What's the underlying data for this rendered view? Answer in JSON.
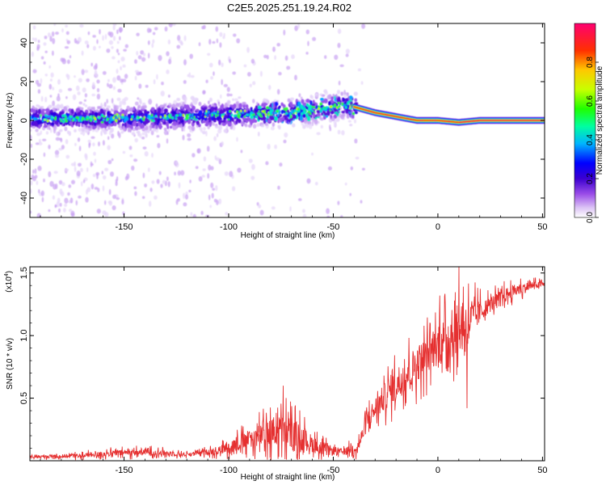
{
  "title": "C2E5.2025.251.19.24.R02",
  "chart_data": [
    {
      "type": "heatmap",
      "xlabel": "Height of straight line (km)",
      "ylabel": "Frequency (Hz)",
      "xlim": [
        -195,
        51
      ],
      "ylim": [
        -50,
        50
      ],
      "xticks": [
        -150,
        -100,
        -50,
        0,
        50
      ],
      "yticks": [
        -40,
        -20,
        0,
        20,
        40
      ],
      "colorbar": {
        "label": "Normalized spectral amplitude",
        "range": [
          0,
          1
        ],
        "ticks": [
          "0.0",
          "0.2",
          "0.4",
          "0.6",
          "0.8"
        ],
        "colors": [
          "#ffffff",
          "#c89bf0",
          "#8a2be2",
          "#3a00c8",
          "#0000ff",
          "#00c8ff",
          "#00ff80",
          "#40ff00",
          "#ffff00",
          "#ff9900",
          "#ff0000",
          "#ff0066"
        ]
      },
      "ridge_center": [
        {
          "x": -195,
          "y": 1
        },
        {
          "x": -150,
          "y": 1
        },
        {
          "x": -100,
          "y": 3
        },
        {
          "x": -70,
          "y": 4
        },
        {
          "x": -45,
          "y": 8
        },
        {
          "x": -40,
          "y": 7
        },
        {
          "x": -30,
          "y": 4
        },
        {
          "x": -20,
          "y": 2
        },
        {
          "x": -10,
          "y": 0
        },
        {
          "x": 0,
          "y": 0
        },
        {
          "x": 10,
          "y": -1
        },
        {
          "x": 20,
          "y": 0
        },
        {
          "x": 50,
          "y": 0
        }
      ]
    },
    {
      "type": "line",
      "xlabel": "Height of straight line (km)",
      "ylabel": "SNR (10 * v/v)",
      "yscale_label": "(x10",
      "yscale_exp": "4",
      "yscale_close": ")",
      "xlim": [
        -195,
        51
      ],
      "ylim": [
        0,
        1.55
      ],
      "xticks": [
        -150,
        -100,
        -50,
        0,
        50
      ],
      "yticks": [
        "0.5",
        "1.0",
        "1.5"
      ],
      "color": "#e53030",
      "trend": [
        {
          "x": -195,
          "y": 0.03
        },
        {
          "x": -170,
          "y": 0.04
        },
        {
          "x": -155,
          "y": 0.06
        },
        {
          "x": -140,
          "y": 0.07
        },
        {
          "x": -120,
          "y": 0.05
        },
        {
          "x": -105,
          "y": 0.08
        },
        {
          "x": -95,
          "y": 0.14
        },
        {
          "x": -85,
          "y": 0.2
        },
        {
          "x": -75,
          "y": 0.24
        },
        {
          "x": -65,
          "y": 0.18
        },
        {
          "x": -55,
          "y": 0.09
        },
        {
          "x": -45,
          "y": 0.07
        },
        {
          "x": -38,
          "y": 0.12
        },
        {
          "x": -33,
          "y": 0.35
        },
        {
          "x": -25,
          "y": 0.52
        },
        {
          "x": -15,
          "y": 0.7
        },
        {
          "x": -5,
          "y": 0.85
        },
        {
          "x": 5,
          "y": 1.0
        },
        {
          "x": 15,
          "y": 1.12
        },
        {
          "x": 25,
          "y": 1.25
        },
        {
          "x": 35,
          "y": 1.35
        },
        {
          "x": 45,
          "y": 1.4
        },
        {
          "x": 51,
          "y": 1.41
        }
      ],
      "noise_amplitude": [
        {
          "x": -195,
          "y": 0.02
        },
        {
          "x": -160,
          "y": 0.05
        },
        {
          "x": -140,
          "y": 0.06
        },
        {
          "x": -115,
          "y": 0.03
        },
        {
          "x": -100,
          "y": 0.1
        },
        {
          "x": -80,
          "y": 0.25
        },
        {
          "x": -70,
          "y": 0.3
        },
        {
          "x": -60,
          "y": 0.15
        },
        {
          "x": -45,
          "y": 0.05
        },
        {
          "x": -35,
          "y": 0.15
        },
        {
          "x": -20,
          "y": 0.3
        },
        {
          "x": 0,
          "y": 0.35
        },
        {
          "x": 12,
          "y": 0.45
        },
        {
          "x": 22,
          "y": 0.15
        },
        {
          "x": 40,
          "y": 0.1
        },
        {
          "x": 51,
          "y": 0.04
        }
      ],
      "spikes": [
        {
          "x": -74,
          "y": 0.6
        },
        {
          "x": -33,
          "y": 0.23
        },
        {
          "x": 10,
          "y": 1.55
        },
        {
          "x": 1,
          "y": 1.32
        },
        {
          "x": 14,
          "y": 0.42
        }
      ]
    }
  ]
}
